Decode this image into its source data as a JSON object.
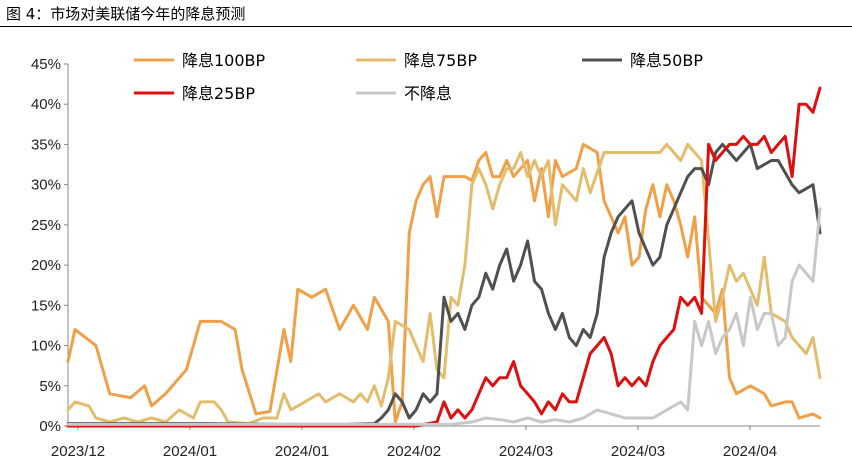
{
  "figure_title": "图  4：市场对美联储今年的降息预测",
  "chart_data": {
    "type": "line",
    "title": "",
    "xlabel": "",
    "ylabel": "",
    "ylim": [
      0,
      45
    ],
    "yticks": [
      "0%",
      "5%",
      "10%",
      "15%",
      "20%",
      "25%",
      "30%",
      "35%",
      "40%",
      "45%"
    ],
    "xticks": [
      "2023/12",
      "2024/01",
      "2024/01",
      "2024/02",
      "2024/03",
      "2024/03",
      "2024/04"
    ],
    "legend_position": "top",
    "grid": false,
    "series": [
      {
        "name": "降息100BP",
        "color": "#F0A048",
        "points": [
          [
            0,
            8
          ],
          [
            1,
            12
          ],
          [
            4,
            10
          ],
          [
            6,
            4
          ],
          [
            9,
            3.5
          ],
          [
            11,
            5
          ],
          [
            12,
            2.5
          ],
          [
            14,
            4
          ],
          [
            17,
            7
          ],
          [
            19,
            13
          ],
          [
            22,
            13
          ],
          [
            24,
            12
          ],
          [
            25,
            7
          ],
          [
            27,
            1.5
          ],
          [
            29,
            1.8
          ],
          [
            31,
            12
          ],
          [
            32,
            8
          ],
          [
            33,
            17
          ],
          [
            35,
            16
          ],
          [
            37,
            17
          ],
          [
            39,
            12
          ],
          [
            41,
            15
          ],
          [
            43,
            12
          ],
          [
            44,
            16
          ],
          [
            46,
            13
          ],
          [
            47,
            0.5
          ],
          [
            48,
            3
          ],
          [
            49,
            24
          ],
          [
            50,
            28
          ],
          [
            51,
            30
          ],
          [
            52,
            31
          ],
          [
            53,
            26
          ],
          [
            54,
            31
          ],
          [
            57,
            31
          ],
          [
            58,
            30.5
          ],
          [
            59,
            33
          ],
          [
            60,
            34
          ],
          [
            61,
            31
          ],
          [
            62,
            31
          ],
          [
            63,
            33
          ],
          [
            64,
            31
          ],
          [
            66,
            33
          ],
          [
            67,
            28
          ],
          [
            68,
            32
          ],
          [
            69,
            26
          ],
          [
            70,
            33
          ],
          [
            71,
            31
          ],
          [
            73,
            32
          ],
          [
            74,
            35
          ],
          [
            76,
            34
          ],
          [
            77,
            28
          ],
          [
            79,
            24
          ],
          [
            80,
            26
          ],
          [
            81,
            20
          ],
          [
            82,
            21
          ],
          [
            83,
            27
          ],
          [
            84,
            30
          ],
          [
            85,
            26
          ],
          [
            86,
            30
          ],
          [
            87,
            28
          ],
          [
            88,
            25
          ],
          [
            89,
            21
          ],
          [
            90,
            26
          ],
          [
            91,
            16
          ],
          [
            93,
            14
          ],
          [
            94,
            17
          ],
          [
            95,
            6
          ],
          [
            96,
            4
          ],
          [
            98,
            5
          ],
          [
            100,
            4
          ],
          [
            101,
            2.5
          ],
          [
            103,
            3
          ],
          [
            104,
            3
          ],
          [
            105,
            1
          ],
          [
            107,
            1.5
          ],
          [
            108,
            1
          ]
        ]
      },
      {
        "name": "降息75BP",
        "color": "#E3BD6E",
        "points": [
          [
            0,
            2
          ],
          [
            1,
            3
          ],
          [
            3,
            2.5
          ],
          [
            4,
            1
          ],
          [
            6,
            0.5
          ],
          [
            8,
            1
          ],
          [
            10,
            0.5
          ],
          [
            12,
            1
          ],
          [
            14,
            0.5
          ],
          [
            16,
            2
          ],
          [
            18,
            1
          ],
          [
            19,
            3
          ],
          [
            21,
            3
          ],
          [
            22,
            2
          ],
          [
            23,
            0.5
          ],
          [
            26,
            0.3
          ],
          [
            28,
            1
          ],
          [
            30,
            1
          ],
          [
            31,
            4
          ],
          [
            32,
            2
          ],
          [
            34,
            3
          ],
          [
            36,
            4
          ],
          [
            37,
            3
          ],
          [
            39,
            4
          ],
          [
            41,
            3
          ],
          [
            42,
            4
          ],
          [
            43,
            3
          ],
          [
            44,
            5
          ],
          [
            45,
            2.5
          ],
          [
            46,
            6
          ],
          [
            47,
            13
          ],
          [
            49,
            12
          ],
          [
            50,
            10
          ],
          [
            51,
            8
          ],
          [
            52,
            14
          ],
          [
            53,
            7
          ],
          [
            54,
            6
          ],
          [
            55,
            16
          ],
          [
            56,
            15
          ],
          [
            57,
            20
          ],
          [
            58,
            30
          ],
          [
            59,
            32
          ],
          [
            60,
            30
          ],
          [
            61,
            27
          ],
          [
            62,
            30
          ],
          [
            63,
            32
          ],
          [
            64,
            32
          ],
          [
            65,
            34
          ],
          [
            66,
            31
          ],
          [
            67,
            33
          ],
          [
            68,
            31
          ],
          [
            69,
            33
          ],
          [
            70,
            25
          ],
          [
            71,
            30
          ],
          [
            73,
            28
          ],
          [
            74,
            32
          ],
          [
            75,
            29
          ],
          [
            77,
            34
          ],
          [
            79,
            34
          ],
          [
            81,
            34
          ],
          [
            83,
            34
          ],
          [
            85,
            34
          ],
          [
            86,
            35
          ],
          [
            88,
            33
          ],
          [
            89,
            35
          ],
          [
            90,
            34
          ],
          [
            91,
            33
          ],
          [
            93,
            13
          ],
          [
            94,
            16
          ],
          [
            95,
            20
          ],
          [
            96,
            18
          ],
          [
            97,
            19
          ],
          [
            99,
            15
          ],
          [
            100,
            21
          ],
          [
            101,
            14
          ],
          [
            103,
            13
          ],
          [
            104,
            11
          ],
          [
            106,
            9
          ],
          [
            107,
            11
          ],
          [
            108,
            6
          ]
        ]
      },
      {
        "name": "降息50BP",
        "color": "#505050",
        "points": [
          [
            0,
            0.3
          ],
          [
            10,
            0.3
          ],
          [
            20,
            0.3
          ],
          [
            30,
            0.2
          ],
          [
            40,
            0.2
          ],
          [
            44,
            0.3
          ],
          [
            45,
            1
          ],
          [
            46,
            2
          ],
          [
            47,
            4
          ],
          [
            48,
            3
          ],
          [
            49,
            1
          ],
          [
            50,
            2
          ],
          [
            51,
            4
          ],
          [
            52,
            3
          ],
          [
            53,
            4
          ],
          [
            54,
            16
          ],
          [
            55,
            13
          ],
          [
            56,
            14
          ],
          [
            57,
            12
          ],
          [
            58,
            15
          ],
          [
            59,
            16
          ],
          [
            60,
            19
          ],
          [
            61,
            17
          ],
          [
            62,
            20
          ],
          [
            63,
            22
          ],
          [
            64,
            18
          ],
          [
            65,
            20
          ],
          [
            66,
            23
          ],
          [
            67,
            18
          ],
          [
            68,
            17
          ],
          [
            69,
            14
          ],
          [
            70,
            12
          ],
          [
            71,
            14
          ],
          [
            72,
            11
          ],
          [
            73,
            10
          ],
          [
            74,
            12
          ],
          [
            75,
            11
          ],
          [
            76,
            14
          ],
          [
            77,
            21
          ],
          [
            78,
            24
          ],
          [
            79,
            26
          ],
          [
            80,
            27
          ],
          [
            81,
            28
          ],
          [
            82,
            24
          ],
          [
            83,
            22
          ],
          [
            84,
            20
          ],
          [
            85,
            21
          ],
          [
            86,
            25
          ],
          [
            87,
            27
          ],
          [
            88,
            29
          ],
          [
            89,
            31
          ],
          [
            90,
            32
          ],
          [
            91,
            32
          ],
          [
            92,
            30
          ],
          [
            93,
            34
          ],
          [
            94,
            35
          ],
          [
            96,
            33
          ],
          [
            97,
            34
          ],
          [
            98,
            35
          ],
          [
            99,
            32
          ],
          [
            101,
            33
          ],
          [
            102,
            33
          ],
          [
            104,
            30
          ],
          [
            105,
            29
          ],
          [
            107,
            30
          ],
          [
            108,
            24
          ]
        ]
      },
      {
        "name": "降息25BP",
        "color": "#DD1010",
        "points": [
          [
            0,
            0
          ],
          [
            50,
            0
          ],
          [
            53,
            0.5
          ],
          [
            54,
            3
          ],
          [
            55,
            1
          ],
          [
            56,
            2
          ],
          [
            57,
            1
          ],
          [
            58,
            2
          ],
          [
            59,
            4
          ],
          [
            60,
            6
          ],
          [
            61,
            5
          ],
          [
            62,
            6
          ],
          [
            63,
            6
          ],
          [
            64,
            8
          ],
          [
            65,
            5
          ],
          [
            66,
            4
          ],
          [
            67,
            3
          ],
          [
            68,
            1.5
          ],
          [
            69,
            3
          ],
          [
            70,
            2
          ],
          [
            71,
            4
          ],
          [
            72,
            3
          ],
          [
            73,
            3
          ],
          [
            74,
            6
          ],
          [
            75,
            9
          ],
          [
            76,
            10
          ],
          [
            77,
            11
          ],
          [
            78,
            9
          ],
          [
            79,
            5
          ],
          [
            80,
            6
          ],
          [
            81,
            5
          ],
          [
            82,
            6
          ],
          [
            83,
            5
          ],
          [
            84,
            8
          ],
          [
            85,
            10
          ],
          [
            86,
            11
          ],
          [
            87,
            12
          ],
          [
            88,
            16
          ],
          [
            89,
            15
          ],
          [
            90,
            16
          ],
          [
            91,
            14
          ],
          [
            92,
            35
          ],
          [
            93,
            33
          ],
          [
            94,
            34
          ],
          [
            95,
            35
          ],
          [
            96,
            35
          ],
          [
            97,
            36
          ],
          [
            98,
            35
          ],
          [
            99,
            35
          ],
          [
            100,
            36
          ],
          [
            101,
            34
          ],
          [
            102,
            35
          ],
          [
            103,
            36
          ],
          [
            104,
            31
          ],
          [
            105,
            40
          ],
          [
            106,
            40
          ],
          [
            107,
            39
          ],
          [
            108,
            42
          ]
        ]
      },
      {
        "name": "不降息",
        "color": "#C8C8C8",
        "points": [
          [
            0,
            0.2
          ],
          [
            20,
            0.2
          ],
          [
            40,
            0.2
          ],
          [
            55,
            0.2
          ],
          [
            58,
            0.5
          ],
          [
            60,
            1
          ],
          [
            62,
            0.8
          ],
          [
            64,
            0.5
          ],
          [
            66,
            1
          ],
          [
            68,
            0.5
          ],
          [
            70,
            0.8
          ],
          [
            72,
            0.5
          ],
          [
            74,
            1
          ],
          [
            76,
            2
          ],
          [
            78,
            1.5
          ],
          [
            80,
            1
          ],
          [
            82,
            1
          ],
          [
            84,
            1
          ],
          [
            86,
            2
          ],
          [
            88,
            3
          ],
          [
            89,
            2
          ],
          [
            90,
            13
          ],
          [
            91,
            10
          ],
          [
            92,
            13
          ],
          [
            93,
            9
          ],
          [
            94,
            11
          ],
          [
            95,
            12
          ],
          [
            96,
            14
          ],
          [
            97,
            10
          ],
          [
            98,
            16
          ],
          [
            99,
            12
          ],
          [
            100,
            14
          ],
          [
            101,
            14
          ],
          [
            102,
            10
          ],
          [
            103,
            11
          ],
          [
            104,
            18
          ],
          [
            105,
            20
          ],
          [
            106,
            19
          ],
          [
            107,
            18
          ],
          [
            108,
            27
          ]
        ]
      }
    ]
  }
}
